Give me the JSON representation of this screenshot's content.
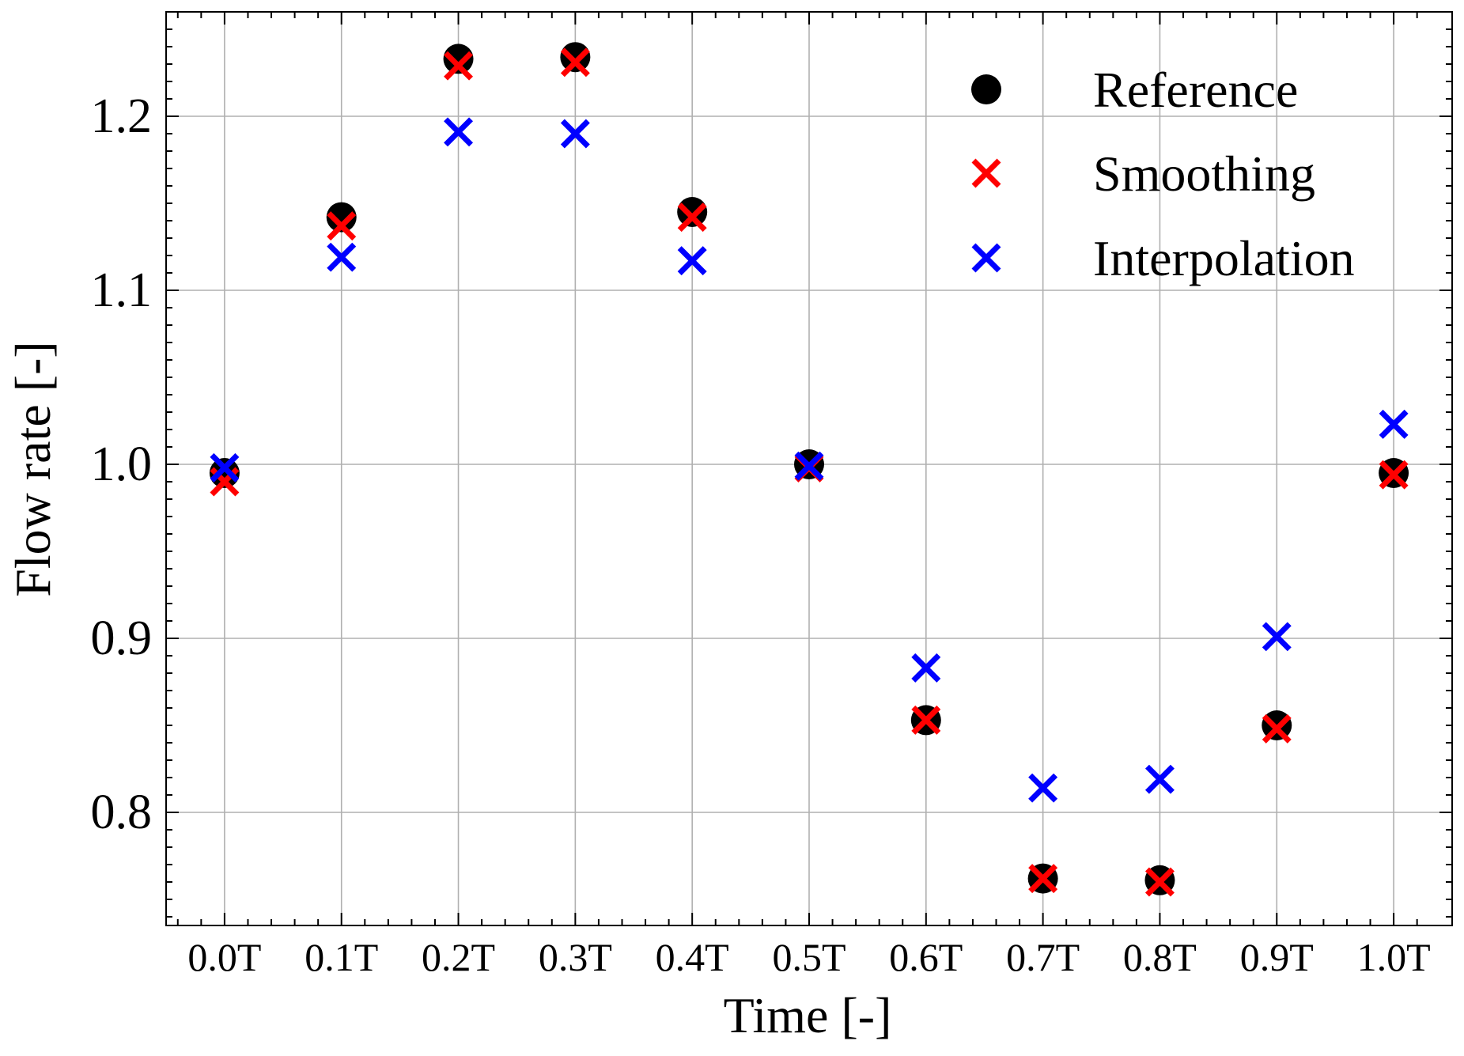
{
  "chart_data": {
    "type": "scatter",
    "xlabel": "Time [-]",
    "ylabel": "Flow rate [-]",
    "categories": [
      "0.0T",
      "0.1T",
      "0.2T",
      "0.3T",
      "0.4T",
      "0.5T",
      "0.6T",
      "0.7T",
      "0.8T",
      "0.9T",
      "1.0T"
    ],
    "x": [
      0.0,
      0.1,
      0.2,
      0.3,
      0.4,
      0.5,
      0.6,
      0.7,
      0.8,
      0.9,
      1.0
    ],
    "xlim": [
      -0.05,
      1.05
    ],
    "ylim": [
      0.735,
      1.26
    ],
    "yticks": [
      "0.8",
      "0.9",
      "1.0",
      "1.1",
      "1.2"
    ],
    "grid": true,
    "legend_position": "top-right",
    "series": [
      {
        "name": "Reference",
        "marker": "circle",
        "color": "#000000",
        "values": [
          0.995,
          1.142,
          1.233,
          1.234,
          1.145,
          1.0,
          0.853,
          0.762,
          0.761,
          0.85,
          0.995
        ]
      },
      {
        "name": "Smoothing",
        "marker": "x",
        "color": "#ff0000",
        "values": [
          0.99,
          1.137,
          1.229,
          1.231,
          1.142,
          0.998,
          0.853,
          0.762,
          0.76,
          0.848,
          0.994
        ]
      },
      {
        "name": "Interpolation",
        "marker": "x",
        "color": "#0000ff",
        "values": [
          0.998,
          1.119,
          1.191,
          1.19,
          1.117,
          0.999,
          0.883,
          0.814,
          0.819,
          0.901,
          1.023
        ]
      }
    ]
  }
}
